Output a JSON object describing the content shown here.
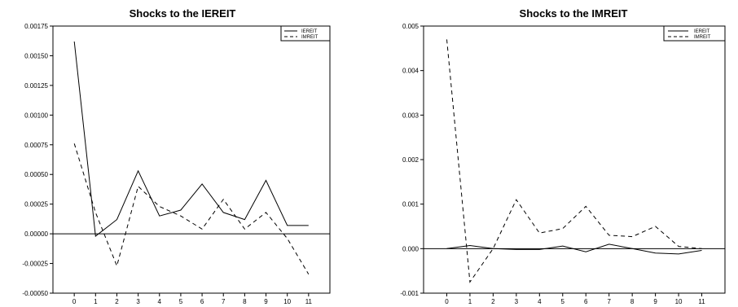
{
  "chart_data": [
    {
      "type": "line",
      "title": "Shocks to the IEREIT",
      "xlabel": "",
      "ylabel": "",
      "x": [
        0,
        1,
        2,
        3,
        4,
        5,
        6,
        7,
        8,
        9,
        10,
        11
      ],
      "xlim": [
        -1,
        12
      ],
      "ylim": [
        -0.0005,
        0.00175
      ],
      "yticks": [
        "0.00175",
        "0.00150",
        "0.00125",
        "0.00100",
        "0.00075",
        "0.00050",
        "0.00025",
        "0.00000",
        "-0.00025",
        "-0.00050"
      ],
      "ytick_values": [
        0.00175,
        0.0015,
        0.00125,
        0.001,
        0.00075,
        0.0005,
        0.00025,
        0.0,
        -0.00025,
        -0.0005
      ],
      "zero_line": true,
      "grid": false,
      "legend_position": "top-right",
      "series": [
        {
          "name": "IEREIT",
          "style": "solid",
          "values": [
            0.00162,
            -2e-05,
            0.00012,
            0.00053,
            0.00015,
            0.0002,
            0.00042,
            0.00018,
            0.00012,
            0.00045,
            7e-05,
            7e-05
          ]
        },
        {
          "name": "IMREIT",
          "style": "dashed",
          "values": [
            0.00076,
            0.00018,
            -0.00027,
            0.0004,
            0.00023,
            0.00015,
            4e-05,
            0.00029,
            4e-05,
            0.00018,
            -4e-05,
            -0.00034
          ]
        }
      ]
    },
    {
      "type": "line",
      "title": "Shocks to the IMREIT",
      "xlabel": "",
      "ylabel": "",
      "x": [
        0,
        1,
        2,
        3,
        4,
        5,
        6,
        7,
        8,
        9,
        10,
        11
      ],
      "xlim": [
        -1,
        12
      ],
      "ylim": [
        -0.001,
        0.005
      ],
      "yticks": [
        "0.005",
        "0.004",
        "0.003",
        "0.002",
        "0.001",
        "0.000",
        "-0.001"
      ],
      "ytick_values": [
        0.005,
        0.004,
        0.003,
        0.002,
        0.001,
        0.0,
        -0.001
      ],
      "zero_line": true,
      "grid": false,
      "legend_position": "top-right",
      "series": [
        {
          "name": "IEREIT",
          "style": "solid",
          "values": [
            0.0,
            7e-05,
            0.0,
            -2e-05,
            -2e-05,
            6e-05,
            -7e-05,
            0.0001,
            0.0,
            -0.0001,
            -0.00012,
            -4e-05
          ]
        },
        {
          "name": "IMREIT",
          "style": "dashed",
          "values": [
            0.0047,
            -0.00075,
            0.0,
            0.0011,
            0.00035,
            0.00045,
            0.00095,
            0.0003,
            0.00027,
            0.0005,
            5e-05,
            0.0
          ]
        }
      ]
    }
  ]
}
